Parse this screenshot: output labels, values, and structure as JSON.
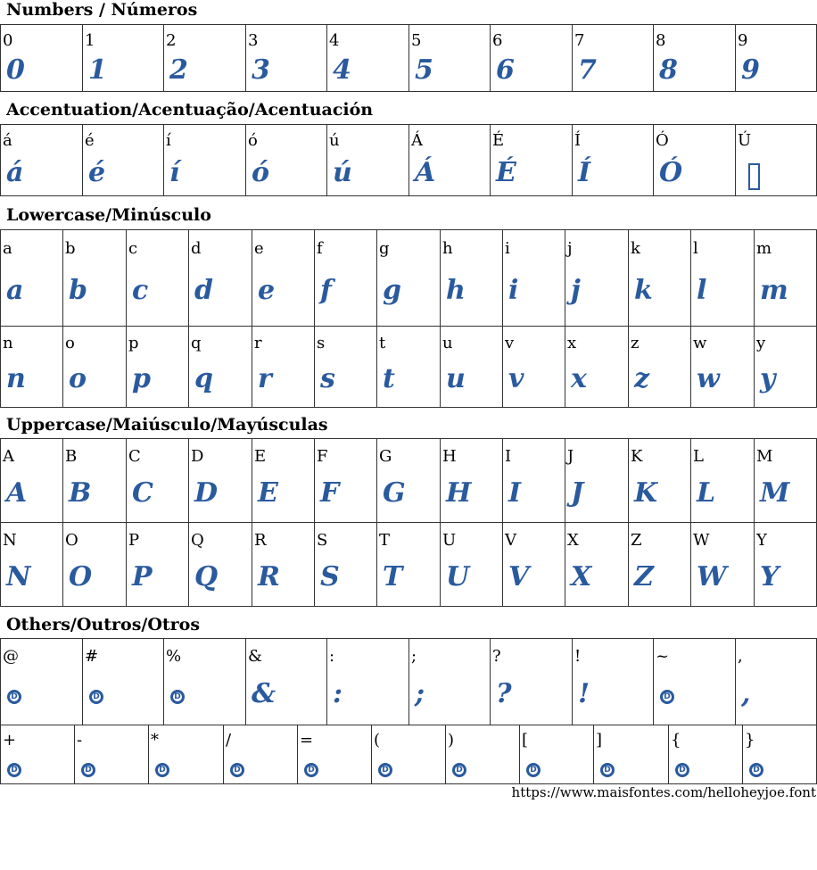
{
  "headings": {
    "numbers": "Numbers / Números",
    "accents": "Accentuation/Acentuação/Acentuación",
    "lowercase": "Lowercase/Minúsculo",
    "uppercase": "Uppercase/Maiúsculo/Mayúsculas",
    "others": "Others/Outros/Otros"
  },
  "glyph_color": "#2a5a9e",
  "rows": [
    {
      "section": "numbers",
      "cells": [
        [
          "0",
          "glyph"
        ],
        [
          "1",
          "glyph"
        ],
        [
          "2",
          "glyph"
        ],
        [
          "3",
          "glyph"
        ],
        [
          "4",
          "glyph"
        ],
        [
          "5",
          "glyph"
        ],
        [
          "6",
          "glyph"
        ],
        [
          "7",
          "glyph"
        ],
        [
          "8",
          "glyph"
        ],
        [
          "9",
          "glyph"
        ]
      ]
    },
    {
      "section": "accents",
      "cells": [
        [
          "á",
          "glyph"
        ],
        [
          "é",
          "glyph"
        ],
        [
          "í",
          "glyph"
        ],
        [
          "ó",
          "glyph"
        ],
        [
          "ú",
          "glyph"
        ],
        [
          "Á",
          "glyph"
        ],
        [
          "É",
          "glyph"
        ],
        [
          "Í",
          "glyph"
        ],
        [
          "Ó",
          "glyph"
        ],
        [
          "Ú",
          "missing-box"
        ]
      ]
    },
    {
      "section": "lowercase",
      "cells": [
        [
          "a",
          "glyph"
        ],
        [
          "b",
          "glyph"
        ],
        [
          "c",
          "glyph"
        ],
        [
          "d",
          "glyph"
        ],
        [
          "e",
          "glyph"
        ],
        [
          "f",
          "glyph"
        ],
        [
          "g",
          "glyph"
        ],
        [
          "h",
          "glyph"
        ],
        [
          "i",
          "glyph"
        ],
        [
          "j",
          "glyph"
        ],
        [
          "k",
          "glyph"
        ],
        [
          "l",
          "glyph"
        ],
        [
          "m",
          "glyph"
        ]
      ]
    },
    {
      "section": "lowercase",
      "cells": [
        [
          "n",
          "glyph"
        ],
        [
          "o",
          "glyph"
        ],
        [
          "p",
          "glyph"
        ],
        [
          "q",
          "glyph"
        ],
        [
          "r",
          "glyph"
        ],
        [
          "s",
          "glyph"
        ],
        [
          "t",
          "glyph"
        ],
        [
          "u",
          "glyph"
        ],
        [
          "v",
          "glyph"
        ],
        [
          "x",
          "glyph"
        ],
        [
          "z",
          "glyph"
        ],
        [
          "w",
          "glyph"
        ],
        [
          "y",
          "glyph"
        ]
      ]
    },
    {
      "section": "uppercase",
      "cells": [
        [
          "A",
          "glyph"
        ],
        [
          "B",
          "glyph"
        ],
        [
          "C",
          "glyph"
        ],
        [
          "D",
          "glyph"
        ],
        [
          "E",
          "glyph"
        ],
        [
          "F",
          "glyph"
        ],
        [
          "G",
          "glyph"
        ],
        [
          "H",
          "glyph"
        ],
        [
          "I",
          "glyph"
        ],
        [
          "J",
          "glyph"
        ],
        [
          "K",
          "glyph"
        ],
        [
          "L",
          "glyph"
        ],
        [
          "M",
          "glyph"
        ]
      ]
    },
    {
      "section": "uppercase",
      "cells": [
        [
          "N",
          "glyph"
        ],
        [
          "O",
          "glyph"
        ],
        [
          "P",
          "glyph"
        ],
        [
          "Q",
          "glyph"
        ],
        [
          "R",
          "glyph"
        ],
        [
          "S",
          "glyph"
        ],
        [
          "T",
          "glyph"
        ],
        [
          "U",
          "glyph"
        ],
        [
          "V",
          "glyph"
        ],
        [
          "X",
          "glyph"
        ],
        [
          "Z",
          "glyph"
        ],
        [
          "W",
          "glyph"
        ],
        [
          "Y",
          "glyph"
        ]
      ]
    },
    {
      "section": "others",
      "cells": [
        [
          "@",
          "fallback-icon"
        ],
        [
          "#",
          "fallback-icon"
        ],
        [
          "%",
          "fallback-icon"
        ],
        [
          "&",
          "glyph"
        ],
        [
          ":",
          "glyph"
        ],
        [
          ";",
          "glyph"
        ],
        [
          "?",
          "glyph"
        ],
        [
          "!",
          "glyph"
        ],
        [
          "~",
          "fallback-icon"
        ],
        [
          ",",
          "glyph"
        ]
      ]
    },
    {
      "section": "others",
      "cells": [
        [
          "+",
          "fallback-icon"
        ],
        [
          "-",
          "fallback-icon"
        ],
        [
          "*",
          "fallback-icon"
        ],
        [
          "/",
          "fallback-icon"
        ],
        [
          "=",
          "fallback-icon"
        ],
        [
          "(",
          "fallback-icon"
        ],
        [
          ")",
          "fallback-icon"
        ],
        [
          "[",
          "fallback-icon"
        ],
        [
          "]",
          "fallback-icon"
        ],
        [
          "{",
          "fallback-icon"
        ],
        [
          "}",
          "fallback-icon"
        ]
      ]
    }
  ],
  "fallback_icon_letter": "D",
  "footer": {
    "url": "https://www.maisfontes.com/helloheyjoe.font"
  }
}
